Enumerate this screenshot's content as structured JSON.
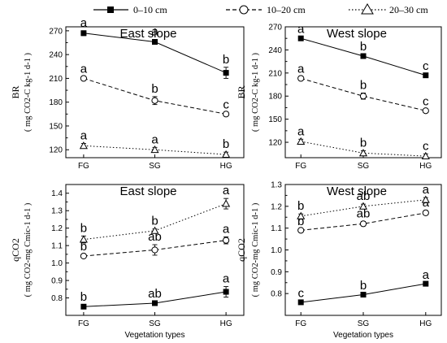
{
  "legend": {
    "placement": "top-center",
    "items": [
      {
        "label": "0–10 cm",
        "marker": "square-filled",
        "dash": "solid"
      },
      {
        "label": "10–20 cm",
        "marker": "circle-open",
        "dash": "dashed"
      },
      {
        "label": "20–30 cm",
        "marker": "triangle-open",
        "dash": "dotted"
      }
    ]
  },
  "chart_data": [
    {
      "type": "line",
      "title": "East slope",
      "ylabel_main": "BR",
      "ylabel_unit": "( mg CO2-C kg-1 d-1 )",
      "xlabel": "",
      "categories": [
        "FG",
        "SG",
        "HG"
      ],
      "ylim": [
        110,
        275
      ],
      "yticks": [
        120,
        150,
        180,
        210,
        240,
        270
      ],
      "series": [
        {
          "name": "0–10 cm",
          "values": [
            267,
            256,
            217
          ],
          "errors": [
            3,
            3,
            7
          ],
          "letters": [
            "a",
            "a",
            "b"
          ]
        },
        {
          "name": "10–20 cm",
          "values": [
            210,
            182,
            165
          ],
          "errors": [
            2,
            5,
            2
          ],
          "letters": [
            "a",
            "b",
            "c"
          ]
        },
        {
          "name": "20–30 cm",
          "values": [
            125,
            120,
            114
          ],
          "errors": [
            3,
            3,
            3
          ],
          "letters": [
            "a",
            "a",
            "b"
          ]
        }
      ]
    },
    {
      "type": "line",
      "title": "West slope",
      "ylabel_main": "BR",
      "ylabel_unit": "( mg CO2-C kg-1 d-1 )",
      "xlabel": "",
      "categories": [
        "FG",
        "SG",
        "HG"
      ],
      "ylim": [
        100,
        270
      ],
      "yticks": [
        120,
        150,
        180,
        210,
        240,
        270
      ],
      "series": [
        {
          "name": "0–10 cm",
          "values": [
            255,
            232,
            207
          ],
          "errors": [
            2,
            2,
            2
          ],
          "letters": [
            "a",
            "b",
            "c"
          ]
        },
        {
          "name": "10–20 cm",
          "values": [
            203,
            180,
            161
          ],
          "errors": [
            2,
            4,
            2
          ],
          "letters": [
            "a",
            "b",
            "c"
          ]
        },
        {
          "name": "20–30 cm",
          "values": [
            121,
            106,
            102
          ],
          "errors": [
            3,
            3,
            3
          ],
          "letters": [
            "a",
            "b",
            "c"
          ]
        }
      ]
    },
    {
      "type": "line",
      "title": "East slope",
      "ylabel_main": "qCO2",
      "ylabel_unit": "( mg CO2-mg Cmic-1 d-1 )",
      "xlabel": "Vegetation types",
      "categories": [
        "FG",
        "SG",
        "HG"
      ],
      "ylim": [
        0.7,
        1.45
      ],
      "yticks": [
        0.8,
        0.9,
        1.0,
        1.1,
        1.2,
        1.3,
        1.4
      ],
      "series": [
        {
          "name": "0–10 cm",
          "values": [
            0.75,
            0.77,
            0.835
          ],
          "errors": [
            0.01,
            0.01,
            0.03
          ],
          "letters": [
            "b",
            "ab",
            "a"
          ]
        },
        {
          "name": "10–20 cm",
          "values": [
            1.04,
            1.075,
            1.13
          ],
          "errors": [
            0.01,
            0.03,
            0.02
          ],
          "letters": [
            "b",
            "ab",
            "a"
          ]
        },
        {
          "name": "20–30 cm",
          "values": [
            1.135,
            1.185,
            1.34
          ],
          "errors": [
            0.02,
            0.01,
            0.03
          ],
          "letters": [
            "b",
            "b",
            "a"
          ]
        }
      ]
    },
    {
      "type": "line",
      "title": "West slope",
      "ylabel_main": "qCO2",
      "ylabel_unit": "( mg CO2-mg Cmic-1 d-1 )",
      "xlabel": "Vegetation types",
      "categories": [
        "FG",
        "SG",
        "HG"
      ],
      "ylim": [
        0.7,
        1.3
      ],
      "yticks": [
        0.8,
        0.9,
        1.0,
        1.1,
        1.2,
        1.3
      ],
      "series": [
        {
          "name": "0–10 cm",
          "values": [
            0.76,
            0.795,
            0.845
          ],
          "errors": [
            0.005,
            0.005,
            0.005
          ],
          "letters": [
            "c",
            "b",
            "a"
          ]
        },
        {
          "name": "10–20 cm",
          "values": [
            1.09,
            1.12,
            1.17
          ],
          "errors": [
            0.005,
            0.01,
            0.01
          ],
          "letters": [
            "b",
            "ab",
            "a"
          ]
        },
        {
          "name": "20–30 cm",
          "values": [
            1.155,
            1.2,
            1.23
          ],
          "errors": [
            0.01,
            0.01,
            0.01
          ],
          "letters": [
            "b",
            "ab",
            "a"
          ]
        }
      ]
    }
  ]
}
